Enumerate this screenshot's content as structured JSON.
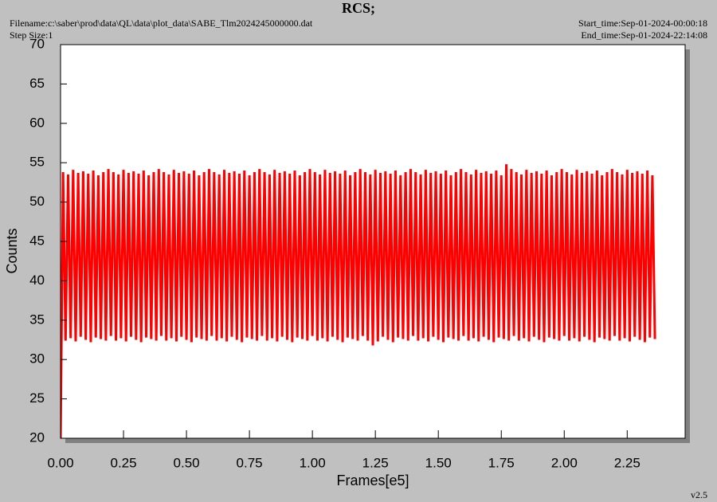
{
  "chart_data": {
    "type": "line",
    "title": "RCS;",
    "filename": "Filename:c:\\saber\\prod\\data\\QL\\data\\plot_data\\SABE_Tlm2024245000000.dat",
    "step_size": "Step Size:1",
    "start_time": "Start_time:Sep-01-2024-00:00:18",
    "end_time": "End_time:Sep-01-2024-22:14:08",
    "version": "v2.5",
    "x_label": "Frames[e5]",
    "y_label": "Counts",
    "xlim": [
      0,
      2.48
    ],
    "ylim": [
      20,
      70
    ],
    "xticks": [
      {
        "value": 0,
        "label": "0.00"
      },
      {
        "value": 0.25,
        "label": "0.25"
      },
      {
        "value": 0.5,
        "label": "0.50"
      },
      {
        "value": 0.75,
        "label": "0.75"
      },
      {
        "value": 1,
        "label": "1.00"
      },
      {
        "value": 1.25,
        "label": "1.25"
      },
      {
        "value": 1.5,
        "label": "1.50"
      },
      {
        "value": 1.75,
        "label": "1.75"
      },
      {
        "value": 2,
        "label": "2.00"
      },
      {
        "value": 2.25,
        "label": "2.25"
      }
    ],
    "yticks": [
      20,
      25,
      30,
      35,
      40,
      45,
      50,
      55,
      60,
      65,
      70
    ],
    "series": [
      {
        "name": "RCS",
        "color": "#ff0000",
        "x": [
          0,
          0.01,
          0.02,
          0.03,
          0.04,
          0.05,
          0.06,
          0.07,
          0.08,
          0.09,
          0.1,
          0.11,
          0.12,
          0.13,
          0.14,
          0.15,
          0.16,
          0.17,
          0.18,
          0.19,
          0.2,
          0.21,
          0.22,
          0.23,
          0.24,
          0.25,
          0.26,
          0.27,
          0.28,
          0.29,
          0.3,
          0.31,
          0.32,
          0.33,
          0.34,
          0.35,
          0.36,
          0.37,
          0.38,
          0.39,
          0.4,
          0.41,
          0.42,
          0.43,
          0.44,
          0.45,
          0.46,
          0.47,
          0.48,
          0.49,
          0.5,
          0.51,
          0.52,
          0.53,
          0.54,
          0.55,
          0.56,
          0.57,
          0.58,
          0.59,
          0.6,
          0.61,
          0.62,
          0.63,
          0.64,
          0.65,
          0.66,
          0.67,
          0.68,
          0.69,
          0.7,
          0.71,
          0.72,
          0.73,
          0.74,
          0.75,
          0.76,
          0.77,
          0.78,
          0.79,
          0.8,
          0.81,
          0.82,
          0.83,
          0.84,
          0.85,
          0.86,
          0.87,
          0.88,
          0.89,
          0.9,
          0.91,
          0.92,
          0.93,
          0.94,
          0.95,
          0.96,
          0.97,
          0.98,
          0.99,
          1,
          1.01,
          1.02,
          1.03,
          1.04,
          1.05,
          1.06,
          1.07,
          1.08,
          1.09,
          1.1,
          1.11,
          1.12,
          1.13,
          1.14,
          1.15,
          1.16,
          1.17,
          1.18,
          1.19,
          1.2,
          1.21,
          1.22,
          1.23,
          1.24,
          1.25,
          1.26,
          1.27,
          1.28,
          1.29,
          1.3,
          1.31,
          1.32,
          1.33,
          1.34,
          1.35,
          1.36,
          1.37,
          1.38,
          1.39,
          1.4,
          1.41,
          1.42,
          1.43,
          1.44,
          1.45,
          1.46,
          1.47,
          1.48,
          1.49,
          1.5,
          1.51,
          1.52,
          1.53,
          1.54,
          1.55,
          1.56,
          1.57,
          1.58,
          1.59,
          1.6,
          1.61,
          1.62,
          1.63,
          1.64,
          1.65,
          1.66,
          1.67,
          1.68,
          1.69,
          1.7,
          1.71,
          1.72,
          1.73,
          1.74,
          1.75,
          1.76,
          1.77,
          1.78,
          1.79,
          1.8,
          1.81,
          1.82,
          1.83,
          1.84,
          1.85,
          1.86,
          1.87,
          1.88,
          1.89,
          1.9,
          1.91,
          1.92,
          1.93,
          1.94,
          1.95,
          1.96,
          1.97,
          1.98,
          1.99,
          2,
          2.01,
          2.02,
          2.03,
          2.04,
          2.05,
          2.06,
          2.07,
          2.08,
          2.09,
          2.1,
          2.11,
          2.12,
          2.13,
          2.14,
          2.15,
          2.16,
          2.17,
          2.18,
          2.19,
          2.2,
          2.21,
          2.22,
          2.23,
          2.24,
          2.25,
          2.26,
          2.27,
          2.28,
          2.29,
          2.3,
          2.31,
          2.32,
          2.33,
          2.34,
          2.35,
          2.36
        ],
        "values": [
          20,
          53.8,
          32.4,
          53.5,
          32.7,
          54.1,
          32.3,
          53.7,
          32.9,
          53.9,
          32.5,
          53.6,
          32.2,
          54.0,
          32.8,
          53.4,
          32.6,
          53.8,
          32.4,
          54.2,
          33.0,
          53.8,
          32.4,
          53.5,
          32.7,
          54.1,
          32.3,
          53.7,
          32.9,
          53.9,
          32.5,
          53.6,
          32.2,
          54.0,
          32.8,
          53.4,
          32.6,
          53.8,
          32.4,
          54.2,
          33.0,
          53.8,
          32.4,
          53.5,
          32.7,
          54.1,
          32.3,
          53.7,
          32.9,
          53.9,
          32.5,
          53.6,
          32.2,
          54.0,
          32.8,
          53.4,
          32.6,
          53.8,
          32.4,
          54.2,
          33.0,
          53.8,
          32.4,
          53.5,
          32.7,
          54.1,
          32.3,
          53.7,
          32.9,
          53.9,
          32.5,
          53.6,
          32.2,
          54.0,
          32.8,
          53.4,
          32.6,
          53.8,
          32.4,
          54.2,
          33.0,
          53.8,
          32.4,
          53.5,
          32.7,
          54.1,
          32.3,
          53.7,
          32.9,
          53.9,
          32.5,
          53.6,
          32.2,
          54.0,
          32.8,
          53.4,
          32.6,
          53.8,
          32.4,
          54.2,
          33.0,
          53.8,
          32.4,
          53.5,
          32.7,
          54.1,
          32.3,
          53.7,
          32.9,
          53.9,
          32.5,
          53.6,
          32.2,
          54.0,
          32.8,
          53.4,
          32.6,
          53.8,
          32.4,
          54.2,
          33.0,
          53.8,
          32.4,
          53.5,
          31.8,
          54.1,
          32.3,
          53.7,
          32.9,
          53.9,
          32.5,
          53.6,
          32.2,
          54.0,
          32.8,
          53.4,
          32.6,
          53.8,
          32.4,
          54.2,
          33.0,
          53.8,
          32.4,
          53.5,
          32.7,
          54.1,
          32.3,
          53.7,
          32.9,
          53.9,
          32.5,
          53.6,
          32.2,
          54.0,
          32.8,
          53.4,
          32.6,
          53.8,
          32.4,
          54.2,
          33.0,
          53.8,
          32.4,
          53.5,
          32.7,
          54.1,
          32.3,
          53.7,
          32.9,
          53.9,
          32.5,
          53.6,
          32.2,
          54.0,
          32.8,
          53.4,
          32.6,
          54.8,
          32.4,
          54.2,
          33.0,
          53.8,
          32.4,
          53.5,
          32.7,
          54.1,
          32.3,
          53.7,
          32.9,
          53.9,
          32.5,
          53.6,
          32.2,
          54.0,
          32.8,
          53.4,
          32.6,
          53.8,
          32.4,
          54.2,
          33.0,
          53.8,
          32.4,
          53.5,
          32.7,
          54.1,
          32.3,
          53.7,
          32.9,
          53.9,
          32.5,
          53.6,
          32.2,
          54.0,
          32.8,
          53.4,
          32.6,
          53.8,
          32.4,
          54.2,
          33.0,
          53.8,
          32.4,
          53.5,
          32.7,
          54.1,
          32.3,
          53.7,
          32.9,
          53.9,
          32.5,
          53.6,
          32.2,
          54.0,
          32.8,
          53.4,
          32.6
        ]
      }
    ]
  }
}
